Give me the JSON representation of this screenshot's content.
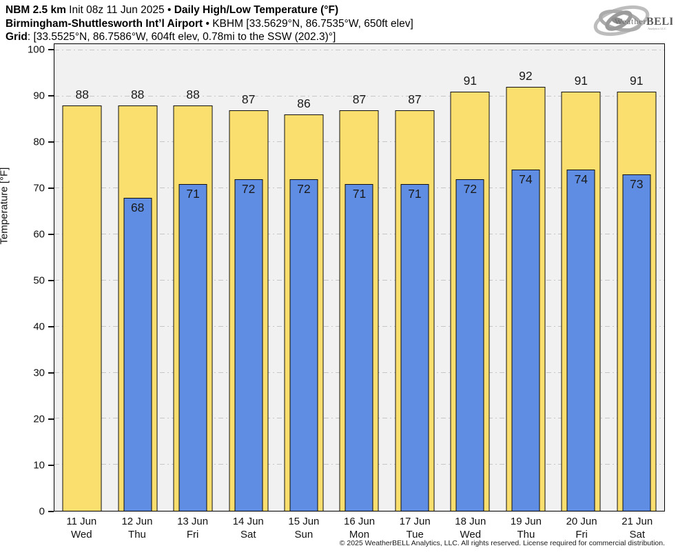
{
  "header": {
    "line1_bold1": "NBM 2.5 km",
    "line1_regular": " Init 08z 11 Jun 2025 ",
    "line1_sep": "• ",
    "line1_bold2": "Daily High/Low Temperature (°F)",
    "line2_bold": "Birmingham-Shuttlesworth Int’l Airport",
    "line2_regular": " • KBHM [33.5629°N, 86.7535°W, 650ft elev]",
    "line3_bold": "Grid",
    "line3_regular": ": [33.5525°N, 86.7586°W, 604ft elev, 0.78mi to the SSW (202.3)°]"
  },
  "logo": {
    "brand_weather": "Weather",
    "brand_bell": "BELL",
    "brand_sub": "Analytics LLC"
  },
  "chart_data": {
    "type": "bar",
    "title": "Daily High/Low Temperature (°F)",
    "xlabel": "",
    "ylabel": "Temperature [°F]",
    "ylim": [
      0,
      101.3
    ],
    "yticks": [
      0,
      10,
      20,
      30,
      40,
      50,
      60,
      70,
      80,
      90,
      100
    ],
    "grid": "horizontal dash-dot",
    "legend_position": "none",
    "categories": [
      {
        "date": "11 Jun",
        "day": "Wed"
      },
      {
        "date": "12 Jun",
        "day": "Thu"
      },
      {
        "date": "13 Jun",
        "day": "Fri"
      },
      {
        "date": "14 Jun",
        "day": "Sat"
      },
      {
        "date": "15 Jun",
        "day": "Sun"
      },
      {
        "date": "16 Jun",
        "day": "Mon"
      },
      {
        "date": "17 Jun",
        "day": "Tue"
      },
      {
        "date": "18 Jun",
        "day": "Wed"
      },
      {
        "date": "19 Jun",
        "day": "Thu"
      },
      {
        "date": "20 Jun",
        "day": "Fri"
      },
      {
        "date": "21 Jun",
        "day": "Sat"
      }
    ],
    "series": [
      {
        "name": "Daily High",
        "color": "#FBDF6E",
        "values": [
          88,
          88,
          88,
          87,
          86,
          87,
          87,
          91,
          92,
          91,
          91
        ]
      },
      {
        "name": "Daily Low",
        "color": "#5E8DE3",
        "values": [
          null,
          68,
          71,
          72,
          72,
          71,
          71,
          72,
          74,
          74,
          73
        ]
      }
    ]
  },
  "colors": {
    "plot_background": "#f1f1f1",
    "page_background": "#ffffff",
    "gridline": "#c6c6c6",
    "bar_border": "#0d0d0d",
    "text": "#111111"
  },
  "footer": {
    "copyright": "© 2025 WeatherBELL Analytics, LLC. All rights reserved. License required for commercial distribution."
  }
}
